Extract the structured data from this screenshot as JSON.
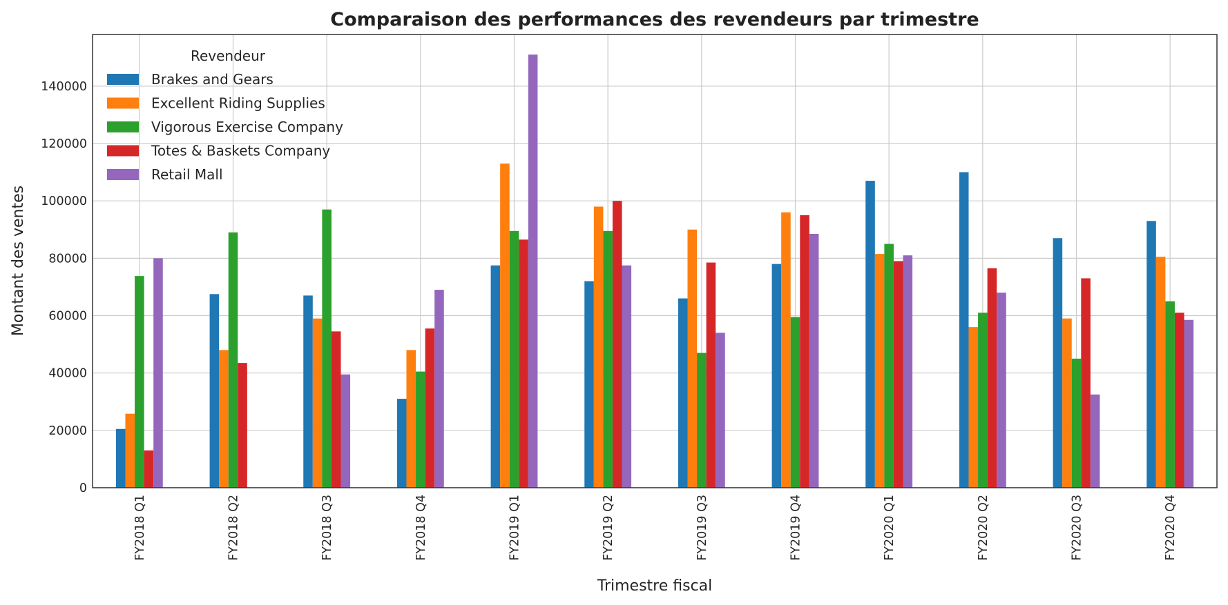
{
  "chart_data": {
    "type": "bar",
    "title": "Comparaison des performances des revendeurs par trimestre",
    "xlabel": "Trimestre fiscal",
    "ylabel": "Montant des ventes",
    "ylim": [
      0,
      158000
    ],
    "yticks": [
      0,
      20000,
      40000,
      60000,
      80000,
      100000,
      120000,
      140000
    ],
    "grid": true,
    "legend_title": "Revendeur",
    "legend_position": "top-left",
    "categories": [
      "FY2018 Q1",
      "FY2018 Q2",
      "FY2018 Q3",
      "FY2018 Q4",
      "FY2019 Q1",
      "FY2019 Q2",
      "FY2019 Q3",
      "FY2019 Q4",
      "FY2020 Q1",
      "FY2020 Q2",
      "FY2020 Q3",
      "FY2020 Q4"
    ],
    "series": [
      {
        "name": "Brakes and Gears",
        "color": "#1f77b4",
        "values": [
          20500,
          67500,
          67000,
          31000,
          77500,
          72000,
          66000,
          78000,
          107000,
          110000,
          87000,
          93000
        ]
      },
      {
        "name": "Excellent Riding Supplies",
        "color": "#ff7f0e",
        "values": [
          25800,
          48000,
          59000,
          48000,
          113000,
          98000,
          90000,
          96000,
          81500,
          56000,
          59000,
          80500
        ]
      },
      {
        "name": "Vigorous Exercise Company",
        "color": "#2ca02c",
        "values": [
          73800,
          89000,
          97000,
          40500,
          89500,
          89500,
          47000,
          59500,
          85000,
          61000,
          45000,
          65000
        ]
      },
      {
        "name": "Totes & Baskets Company",
        "color": "#d62728",
        "values": [
          13000,
          43500,
          54500,
          55500,
          86500,
          100000,
          78500,
          95000,
          79000,
          76500,
          73000,
          61000
        ]
      },
      {
        "name": "Retail Mall",
        "color": "#9467bd",
        "values": [
          80000,
          null,
          39500,
          69000,
          151000,
          77500,
          54000,
          88500,
          81000,
          68000,
          32500,
          58500
        ]
      }
    ]
  }
}
